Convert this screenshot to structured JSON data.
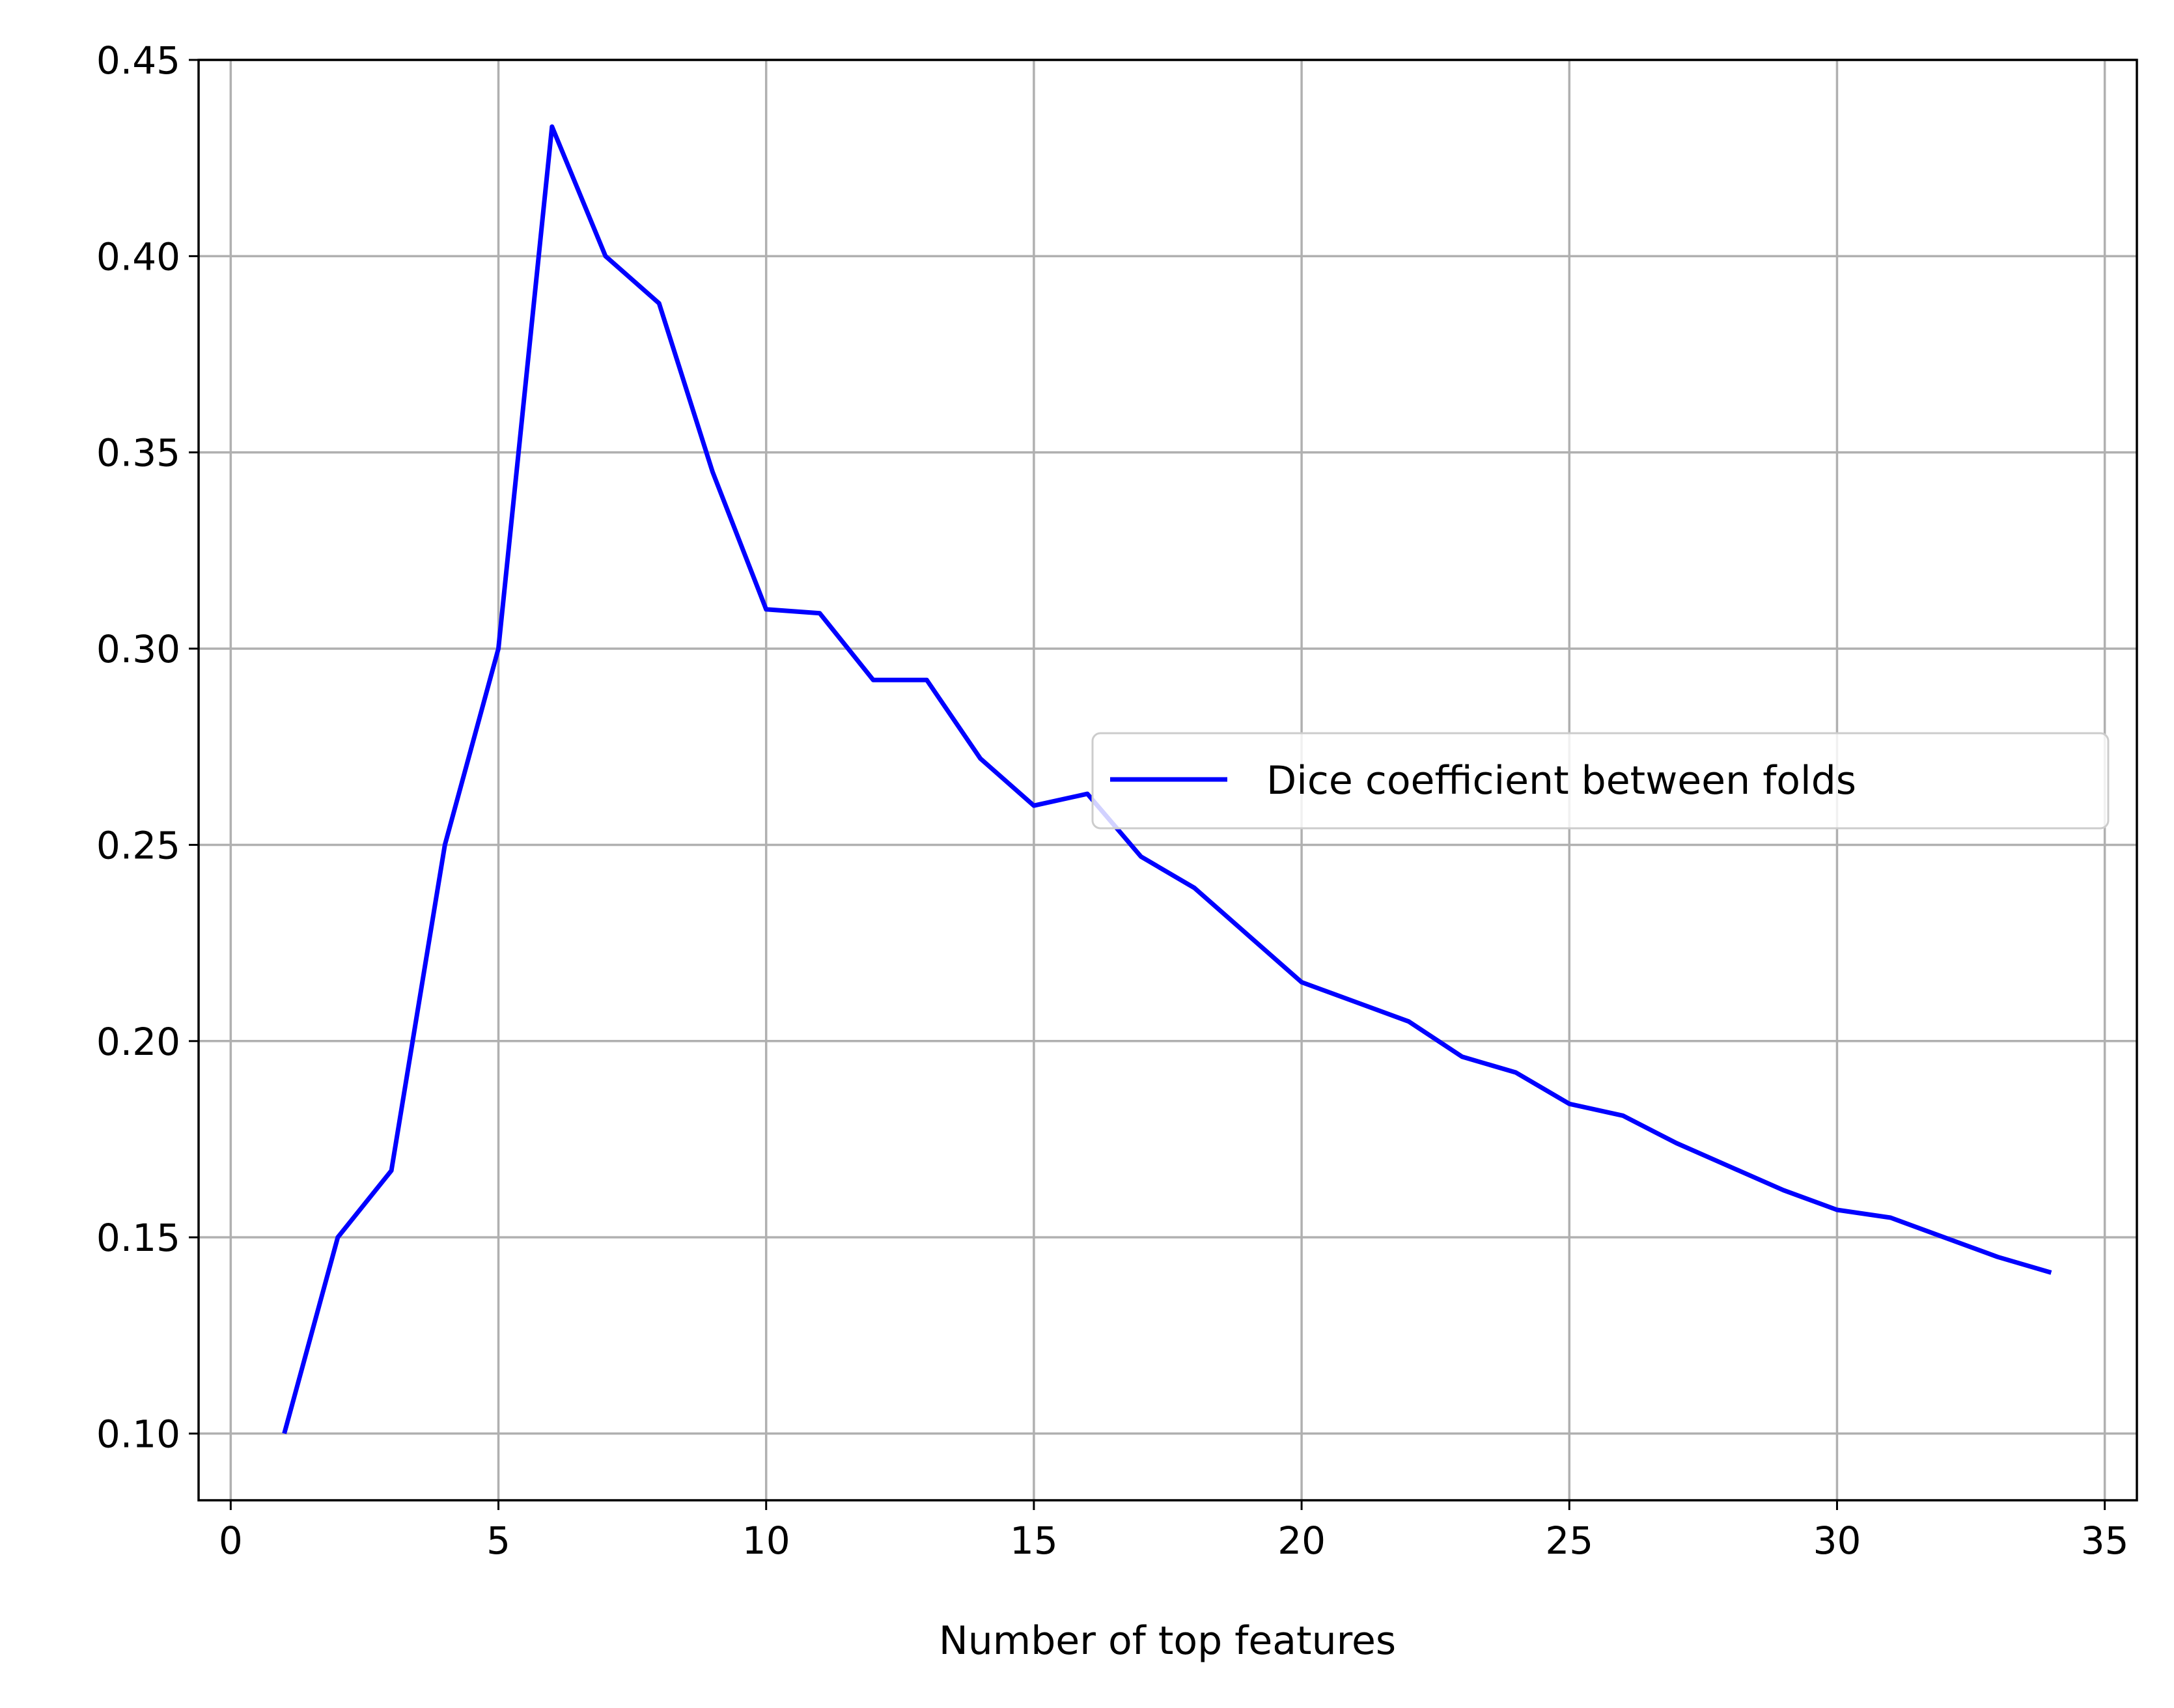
{
  "chart_data": {
    "type": "line",
    "title": "",
    "xlabel": "Number of top features",
    "ylabel": "",
    "xlim": [
      -0.6,
      35.6
    ],
    "ylim": [
      0.083,
      0.45
    ],
    "xticks": [
      0,
      5,
      10,
      15,
      20,
      25,
      30,
      35
    ],
    "xtick_labels": [
      "0",
      "5",
      "10",
      "15",
      "20",
      "25",
      "30",
      "35"
    ],
    "yticks": [
      0.1,
      0.15,
      0.2,
      0.25,
      0.3,
      0.35,
      0.4,
      0.45
    ],
    "ytick_labels": [
      "0.10",
      "0.15",
      "0.20",
      "0.25",
      "0.30",
      "0.35",
      "0.40",
      "0.45"
    ],
    "grid": true,
    "legend_position": "center-right",
    "series": [
      {
        "name": "Dice coefficient between folds",
        "color": "#0000ff",
        "x": [
          1,
          2,
          3,
          4,
          5,
          6,
          7,
          8,
          9,
          10,
          11,
          12,
          13,
          14,
          15,
          16,
          17,
          18,
          19,
          20,
          21,
          22,
          23,
          24,
          25,
          26,
          27,
          28,
          29,
          30,
          31,
          32,
          33,
          34
        ],
        "y": [
          0.1,
          0.15,
          0.167,
          0.25,
          0.3,
          0.433,
          0.4,
          0.388,
          0.345,
          0.31,
          0.309,
          0.292,
          0.292,
          0.272,
          0.26,
          0.263,
          0.247,
          0.239,
          0.227,
          0.215,
          0.21,
          0.205,
          0.196,
          0.192,
          0.184,
          0.181,
          0.174,
          0.168,
          0.162,
          0.157,
          0.155,
          0.15,
          0.145,
          0.141
        ]
      }
    ]
  }
}
